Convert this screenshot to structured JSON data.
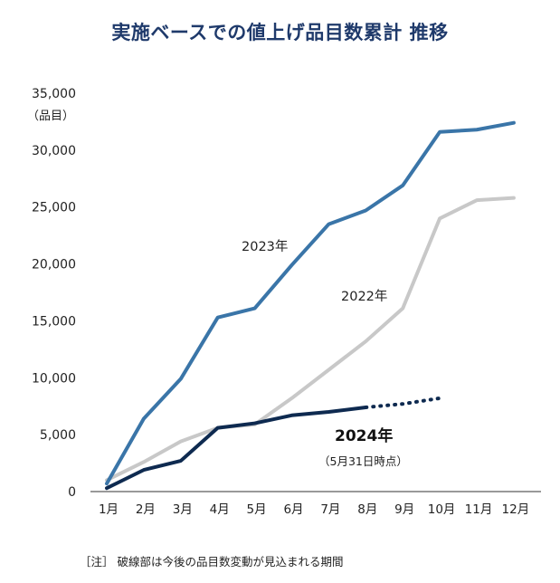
{
  "chart_data": {
    "type": "line",
    "title": "実施ベースでの値上げ品目数累計 推移",
    "ylabel": "（品目）",
    "ylim": [
      0,
      35000
    ],
    "yticks": [
      0,
      5000,
      10000,
      15000,
      20000,
      25000,
      30000,
      35000
    ],
    "ytick_labels": [
      "0",
      "5,000",
      "10,000",
      "15,000",
      "20,000",
      "25,000",
      "30,000",
      "35,000"
    ],
    "categories": [
      "1月",
      "2月",
      "3月",
      "4月",
      "5月",
      "6月",
      "7月",
      "8月",
      "9月",
      "10月",
      "11月",
      "12月"
    ],
    "grid": false,
    "series": [
      {
        "name": "2023年",
        "color": "#3a75a8",
        "values": [
          700,
          6400,
          9900,
          15300,
          16100,
          19900,
          23500,
          24700,
          26900,
          31600,
          31800,
          32400
        ]
      },
      {
        "name": "2022年",
        "color": "#c8c8c8",
        "values": [
          1000,
          2600,
          4400,
          5600,
          5900,
          8200,
          10700,
          13200,
          16100,
          24000,
          25600,
          25800
        ]
      },
      {
        "name": "2024年",
        "color": "#0e2a50",
        "sublabel": "（5月31日時点）",
        "values": [
          300,
          1900,
          2700,
          5600,
          6000,
          6700,
          7000,
          7400,
          null,
          null,
          null,
          null
        ],
        "projected": [
          7400,
          7700,
          8200
        ]
      }
    ],
    "footnote": "［注］ 破線部は今後の品目数変動が見込まれる期間"
  }
}
